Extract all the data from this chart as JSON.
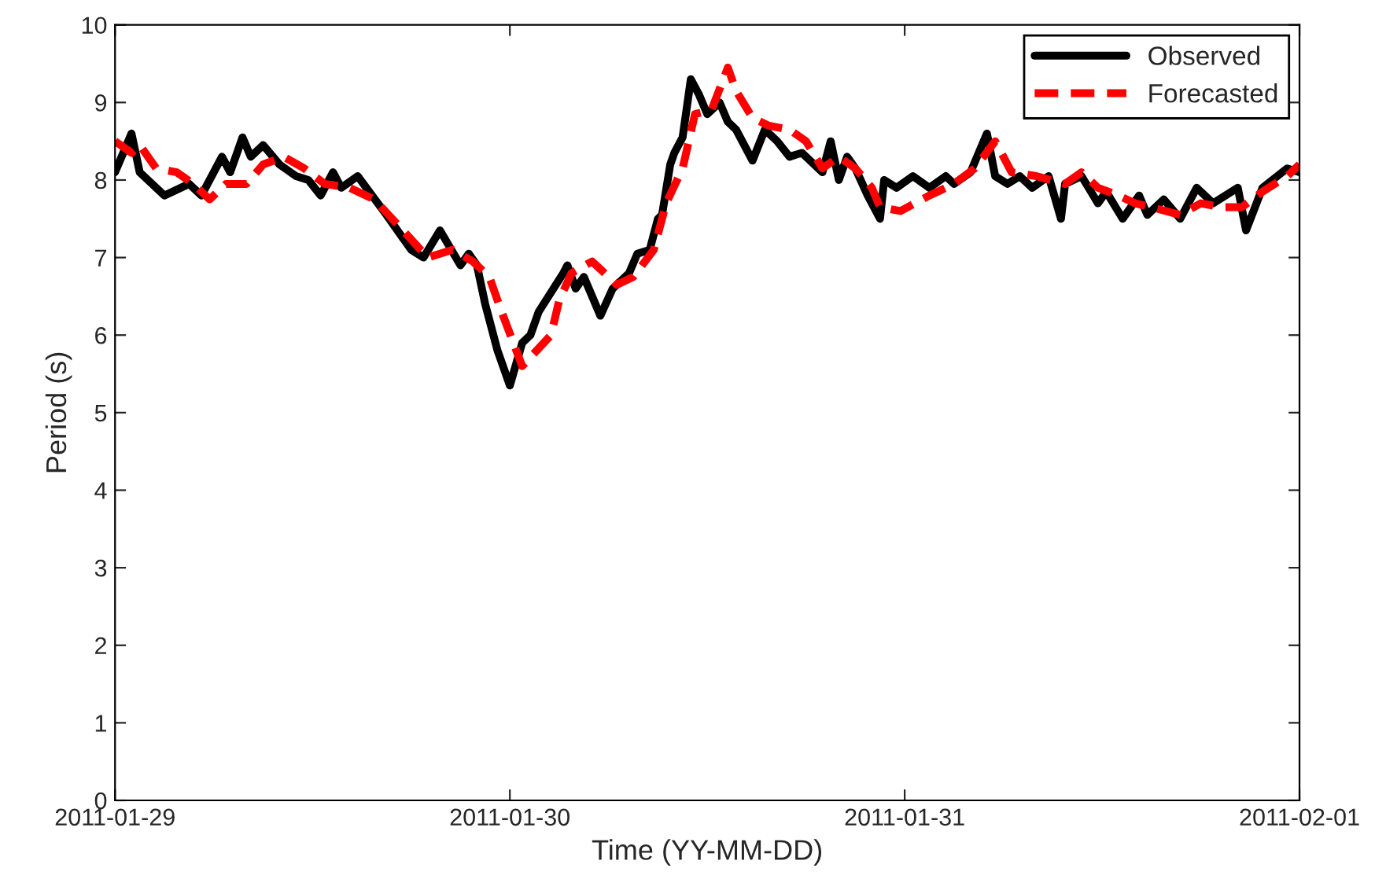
{
  "chart_data": {
    "type": "line",
    "xlabel": "Time (YY-MM-DD)",
    "ylabel": "Period (s)",
    "xlim": [
      "2011-01-29",
      "2011-02-01"
    ],
    "xticks": [
      "2011-01-29",
      "2011-01-30",
      "2011-01-31",
      "2011-02-01"
    ],
    "ylim": [
      0,
      10
    ],
    "yticks": [
      0,
      1,
      2,
      3,
      4,
      5,
      6,
      7,
      8,
      9,
      10
    ],
    "grid": false,
    "legend": "top right",
    "series": [
      {
        "name": "Observed",
        "color": "#000000",
        "line_style": "solid",
        "x": [
          "2011-01-29T00:00",
          "2011-01-29T01:00",
          "2011-01-29T01:30",
          "2011-01-29T03:00",
          "2011-01-29T04:30",
          "2011-01-29T05:15",
          "2011-01-29T06:30",
          "2011-01-29T07:00",
          "2011-01-29T07:45",
          "2011-01-29T08:15",
          "2011-01-29T09:00",
          "2011-01-29T10:00",
          "2011-01-29T11:00",
          "2011-01-29T11:45",
          "2011-01-29T12:30",
          "2011-01-29T13:15",
          "2011-01-29T13:45",
          "2011-01-29T14:45",
          "2011-01-29T16:30",
          "2011-01-29T18:00",
          "2011-01-29T18:45",
          "2011-01-29T19:45",
          "2011-01-29T21:00",
          "2011-01-29T21:30",
          "2011-01-29T22:00",
          "2011-01-29T22:30",
          "2011-01-29T23:15",
          "2011-01-30T00:00",
          "2011-01-30T00:45",
          "2011-01-30T01:15",
          "2011-01-30T01:45",
          "2011-01-30T03:15",
          "2011-01-30T03:30",
          "2011-01-30T04:00",
          "2011-01-30T04:30",
          "2011-01-30T05:30",
          "2011-01-30T06:15",
          "2011-01-30T07:15",
          "2011-01-30T07:45",
          "2011-01-30T08:30",
          "2011-01-30T09:00",
          "2011-01-30T09:15",
          "2011-01-30T09:45",
          "2011-01-30T10:00",
          "2011-01-30T10:30",
          "2011-01-30T11:00",
          "2011-01-30T11:30",
          "2011-01-30T12:00",
          "2011-01-30T12:45",
          "2011-01-30T13:15",
          "2011-01-30T13:45",
          "2011-01-30T14:45",
          "2011-01-30T15:30",
          "2011-01-30T16:15",
          "2011-01-30T17:00",
          "2011-01-30T17:45",
          "2011-01-30T19:00",
          "2011-01-30T19:30",
          "2011-01-30T20:00",
          "2011-01-30T20:30",
          "2011-01-30T21:00",
          "2011-01-30T21:45",
          "2011-01-30T22:30",
          "2011-01-30T22:45",
          "2011-01-30T23:30",
          "2011-01-31T00:30",
          "2011-01-31T01:30",
          "2011-01-31T02:30",
          "2011-01-31T03:00",
          "2011-01-31T04:00",
          "2011-01-31T05:00",
          "2011-01-31T05:30",
          "2011-01-31T06:15",
          "2011-01-31T07:00",
          "2011-01-31T07:45",
          "2011-01-31T08:45",
          "2011-01-31T09:30",
          "2011-01-31T09:45",
          "2011-01-31T10:45",
          "2011-01-31T11:45",
          "2011-01-31T12:15",
          "2011-01-31T13:15",
          "2011-01-31T14:15",
          "2011-01-31T14:45",
          "2011-01-31T15:45",
          "2011-01-31T16:45",
          "2011-01-31T17:45",
          "2011-01-31T18:45",
          "2011-01-31T20:15",
          "2011-01-31T20:45",
          "2011-01-31T21:45",
          "2011-01-31T23:15",
          "2011-02-01T00:00"
        ],
        "values": [
          8.1,
          8.6,
          8.1,
          7.8,
          7.95,
          7.8,
          8.3,
          8.1,
          8.55,
          8.3,
          8.45,
          8.2,
          8.05,
          8.0,
          7.8,
          8.1,
          7.9,
          8.05,
          7.55,
          7.1,
          7.0,
          7.35,
          6.9,
          7.05,
          6.9,
          6.4,
          5.8,
          5.35,
          5.9,
          6.0,
          6.3,
          6.8,
          6.9,
          6.6,
          6.75,
          6.25,
          6.6,
          6.8,
          7.05,
          7.1,
          7.5,
          7.55,
          8.2,
          8.35,
          8.55,
          9.3,
          9.1,
          8.85,
          9.0,
          8.75,
          8.65,
          8.25,
          8.65,
          8.5,
          8.3,
          8.35,
          8.1,
          8.5,
          8.0,
          8.3,
          8.15,
          7.8,
          7.5,
          8.0,
          7.9,
          8.05,
          7.9,
          8.05,
          7.95,
          8.1,
          8.6,
          8.05,
          7.95,
          8.05,
          7.9,
          8.05,
          7.5,
          7.95,
          8.05,
          7.7,
          7.85,
          7.5,
          7.8,
          7.55,
          7.75,
          7.5,
          7.9,
          7.7,
          7.9,
          7.35,
          7.9,
          8.15,
          8.1
        ]
      },
      {
        "name": "Forecasted",
        "color": "#ff0000",
        "line_style": "dashed",
        "x": [
          "2011-01-29T00:00",
          "2011-01-29T01:00",
          "2011-01-29T01:30",
          "2011-01-29T02:30",
          "2011-01-29T03:45",
          "2011-01-29T04:45",
          "2011-01-29T05:45",
          "2011-01-29T06:45",
          "2011-01-29T08:00",
          "2011-01-29T09:00",
          "2011-01-29T10:15",
          "2011-01-29T11:30",
          "2011-01-29T12:45",
          "2011-01-29T14:15",
          "2011-01-29T15:45",
          "2011-01-29T17:30",
          "2011-01-29T19:00",
          "2011-01-29T20:30",
          "2011-01-29T21:45",
          "2011-01-29T22:45",
          "2011-01-29T23:30",
          "2011-01-30T00:45",
          "2011-01-30T02:30",
          "2011-01-30T03:00",
          "2011-01-30T03:45",
          "2011-01-30T05:00",
          "2011-01-30T06:30",
          "2011-01-30T07:30",
          "2011-01-30T08:45",
          "2011-01-30T09:30",
          "2011-01-30T10:30",
          "2011-01-30T11:15",
          "2011-01-30T12:15",
          "2011-01-30T13:15",
          "2011-01-30T13:45",
          "2011-01-30T14:45",
          "2011-01-30T15:45",
          "2011-01-30T17:00",
          "2011-01-30T18:00",
          "2011-01-30T19:00",
          "2011-01-30T20:00",
          "2011-01-30T21:00",
          "2011-01-30T22:00",
          "2011-01-30T22:30",
          "2011-01-30T23:45",
          "2011-01-31T01:30",
          "2011-01-31T03:00",
          "2011-01-31T04:15",
          "2011-01-31T05:30",
          "2011-01-31T06:30",
          "2011-01-31T08:00",
          "2011-01-31T09:45",
          "2011-01-31T10:45",
          "2011-01-31T11:45",
          "2011-01-31T13:00",
          "2011-01-31T14:00",
          "2011-01-31T15:00",
          "2011-01-31T16:45",
          "2011-01-31T18:00",
          "2011-01-31T19:15",
          "2011-01-31T20:30",
          "2011-01-31T21:45",
          "2011-01-31T23:15",
          "2011-02-01T00:00"
        ],
        "values": [
          8.5,
          8.35,
          8.45,
          8.15,
          8.1,
          7.95,
          7.75,
          7.95,
          7.95,
          8.2,
          8.3,
          8.15,
          7.95,
          7.9,
          7.75,
          7.35,
          7.0,
          7.1,
          6.95,
          6.75,
          6.3,
          5.6,
          6.0,
          6.45,
          6.8,
          6.95,
          6.65,
          6.75,
          7.1,
          7.7,
          8.15,
          8.85,
          8.9,
          9.45,
          9.15,
          8.8,
          8.7,
          8.65,
          8.5,
          8.15,
          8.3,
          8.15,
          7.9,
          7.65,
          7.6,
          7.8,
          7.95,
          8.15,
          8.5,
          8.1,
          8.05,
          7.95,
          8.1,
          7.9,
          7.8,
          7.7,
          7.65,
          7.55,
          7.7,
          7.65,
          7.65,
          7.85,
          8.05,
          8.2
        ]
      }
    ]
  }
}
